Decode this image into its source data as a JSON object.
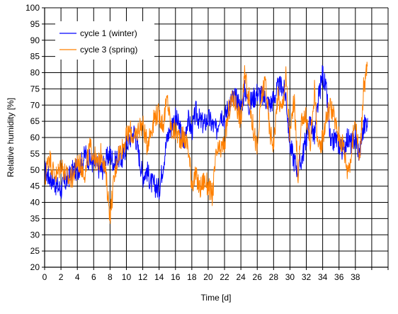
{
  "chart_data": {
    "type": "line",
    "title": "",
    "xlabel": "Time [d]",
    "ylabel": "Relative humidity [%]",
    "xlim": [
      0,
      42
    ],
    "ylim": [
      20,
      100
    ],
    "x_ticks": [
      0,
      2,
      4,
      6,
      8,
      10,
      12,
      14,
      16,
      18,
      20,
      22,
      24,
      26,
      28,
      30,
      32,
      34,
      36,
      38
    ],
    "x_gridlines": [
      0,
      2,
      4,
      6,
      8,
      10,
      12,
      14,
      16,
      18,
      20,
      22,
      24,
      26,
      28,
      30,
      32,
      34,
      36,
      38,
      40,
      42
    ],
    "y_ticks": [
      20,
      25,
      30,
      35,
      40,
      45,
      50,
      55,
      60,
      65,
      70,
      75,
      80,
      85,
      90,
      95,
      100
    ],
    "grid": true,
    "legend_position": "top-left",
    "series": [
      {
        "name": "cycle 1 (winter)",
        "color": "#0000ff",
        "x": [
          0,
          0.5,
          1,
          1.5,
          2,
          2.5,
          3,
          3.5,
          4,
          4.5,
          5,
          5.5,
          6,
          6.5,
          7,
          7.5,
          8,
          8.5,
          9,
          9.5,
          10,
          10.5,
          11,
          11.5,
          12,
          12.5,
          13,
          13.5,
          14,
          14.5,
          15,
          15.5,
          16,
          16.5,
          17,
          17.5,
          18,
          18.5,
          19,
          19.5,
          20,
          20.5,
          21,
          21.5,
          22,
          22.5,
          23,
          23.5,
          24,
          24.5,
          25,
          25.5,
          26,
          26.5,
          27,
          27.5,
          28,
          28.5,
          29,
          29.5,
          30,
          30.5,
          31,
          31.5,
          32,
          32.5,
          33,
          33.5,
          34,
          34.5,
          35,
          35.5,
          36,
          36.5,
          37,
          37.5,
          38,
          38.5,
          39,
          39.5
        ],
        "values": [
          50,
          48,
          47,
          45,
          44,
          46,
          48,
          50,
          50,
          52,
          55,
          53,
          52,
          51,
          50,
          53,
          55,
          52,
          54,
          53,
          58,
          60,
          62,
          55,
          48,
          50,
          46,
          45,
          44,
          52,
          60,
          64,
          66,
          63,
          58,
          66,
          62,
          68,
          65,
          64,
          66,
          64,
          62,
          68,
          66,
          70,
          72,
          72,
          69,
          75,
          70,
          72,
          74,
          73,
          72,
          70,
          72,
          75,
          76,
          73,
          58,
          53,
          50,
          54,
          60,
          65,
          60,
          72,
          80,
          73,
          57,
          60,
          58,
          56,
          60,
          58,
          60,
          55,
          63,
          66
        ]
      },
      {
        "name": "cycle 3 (spring)",
        "color": "#ff8000",
        "x": [
          0,
          0.5,
          1,
          1.5,
          2,
          2.5,
          3,
          3.5,
          4,
          4.5,
          5,
          5.5,
          6,
          6.5,
          7,
          7.5,
          8,
          8.5,
          9,
          9.5,
          10,
          10.5,
          11,
          11.5,
          12,
          12.5,
          13,
          13.5,
          14,
          14.5,
          15,
          15.5,
          16,
          16.5,
          17,
          17.5,
          18,
          18.5,
          19,
          19.5,
          20,
          20.5,
          21,
          21.5,
          22,
          22.5,
          23,
          23.5,
          24,
          24.5,
          25,
          25.5,
          26,
          26.5,
          27,
          27.5,
          28,
          28.5,
          29,
          29.5,
          30,
          30.5,
          31,
          31.5,
          32,
          32.5,
          33,
          33.5,
          34,
          34.5,
          35,
          35.5,
          36,
          36.5,
          37,
          37.5,
          38,
          38.5,
          39,
          39.5
        ],
        "values": [
          46,
          55,
          50,
          48,
          52,
          49,
          47,
          48,
          53,
          51,
          49,
          57,
          55,
          51,
          56,
          48,
          36,
          47,
          55,
          57,
          60,
          62,
          59,
          63,
          64,
          58,
          62,
          67,
          67,
          64,
          72,
          62,
          62,
          60,
          60,
          58,
          46,
          48,
          44,
          47,
          45,
          42,
          55,
          56,
          58,
          68,
          72,
          70,
          65,
          80,
          72,
          63,
          56,
          72,
          78,
          62,
          58,
          73,
          68,
          79,
          60,
          72,
          48,
          67,
          66,
          58,
          75,
          55,
          60,
          67,
          70,
          65,
          60,
          58,
          50,
          54,
          67,
          52,
          75,
          82
        ]
      }
    ]
  }
}
